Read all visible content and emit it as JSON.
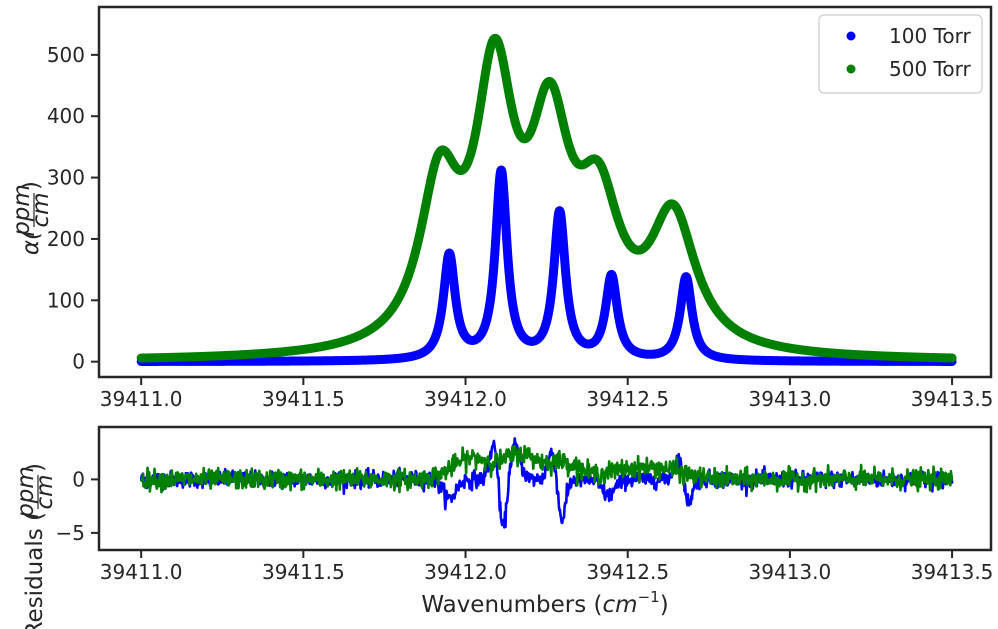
{
  "chart_data": [
    {
      "type": "scatter",
      "xlim": [
        39410.87,
        39413.62
      ],
      "ylim": [
        -25,
        578
      ],
      "x_ticks": [
        39411.0,
        39411.5,
        39412.0,
        39412.5,
        39413.0,
        39413.5
      ],
      "x_tick_labels": [
        "39411.0",
        "39411.5",
        "39412.0",
        "39412.5",
        "39413.0",
        "39413.5"
      ],
      "y_ticks": [
        0,
        100,
        200,
        300,
        400,
        500
      ],
      "y_tick_labels": [
        "0",
        "100",
        "200",
        "300",
        "400",
        "500"
      ],
      "ylabel_main": "α(",
      "ylabel_frac_num": "ppm",
      "ylabel_frac_den": "cm",
      "ylabel_close": ")",
      "grid": false,
      "legend": "top-right",
      "x_range": [
        39411.0,
        39413.5
      ],
      "series": [
        {
          "name": "100 Torr",
          "color": "#0000ff",
          "model": "lorentzian_sum",
          "baseline": 0,
          "peaks": [
            {
              "center": 39411.95,
              "height": 170,
              "hwhm": 0.022
            },
            {
              "center": 39412.11,
              "height": 305,
              "hwhm": 0.022
            },
            {
              "center": 39412.29,
              "height": 238,
              "hwhm": 0.022
            },
            {
              "center": 39412.45,
              "height": 135,
              "hwhm": 0.022
            },
            {
              "center": 39412.68,
              "height": 136,
              "hwhm": 0.022
            }
          ]
        },
        {
          "name": "500 Torr",
          "color": "#008000",
          "model": "lorentzian_sum",
          "baseline": 0,
          "peaks": [
            {
              "center": 39411.92,
              "height": 255,
              "hwhm": 0.075
            },
            {
              "center": 39412.09,
              "height": 415,
              "hwhm": 0.072
            },
            {
              "center": 39412.26,
              "height": 325,
              "hwhm": 0.075
            },
            {
              "center": 39412.41,
              "height": 210,
              "hwhm": 0.08
            },
            {
              "center": 39412.64,
              "height": 212,
              "hwhm": 0.085
            }
          ]
        }
      ]
    },
    {
      "type": "line",
      "xlim": [
        39410.87,
        39413.62
      ],
      "ylim": [
        -6.6,
        4.9
      ],
      "x_ticks": [
        39411.0,
        39411.5,
        39412.0,
        39412.5,
        39413.0,
        39413.5
      ],
      "x_tick_labels": [
        "39411.0",
        "39411.5",
        "39412.0",
        "39412.5",
        "39413.0",
        "39413.5"
      ],
      "y_ticks": [
        -5,
        0
      ],
      "y_tick_labels": [
        "−5",
        "0"
      ],
      "xlabel_main": "Wavenumbers (",
      "xlabel_italic": "cm",
      "xlabel_sup": "−1",
      "xlabel_close": ")",
      "ylabel_main": "Residuals (",
      "ylabel_frac_num": "ppm",
      "ylabel_frac_den": "cm",
      "ylabel_close": ")",
      "grid": false,
      "x_range": [
        39411.0,
        39413.5
      ],
      "series": [
        {
          "name": "100 Torr",
          "color": "#0000ff",
          "noise_amplitude": 0.55,
          "features": [
            {
              "center": 39411.95,
              "amp": -1.8,
              "width": 0.02
            },
            {
              "center": 39412.09,
              "amp": 3.8,
              "width": 0.014
            },
            {
              "center": 39412.115,
              "amp": -5.8,
              "width": 0.013
            },
            {
              "center": 39412.15,
              "amp": 3.2,
              "width": 0.018
            },
            {
              "center": 39412.27,
              "amp": 3.0,
              "width": 0.014
            },
            {
              "center": 39412.295,
              "amp": -4.2,
              "width": 0.013
            },
            {
              "center": 39412.44,
              "amp": -1.5,
              "width": 0.02
            },
            {
              "center": 39412.66,
              "amp": 2.2,
              "width": 0.015
            },
            {
              "center": 39412.685,
              "amp": -2.5,
              "width": 0.013
            }
          ]
        },
        {
          "name": "500 Torr",
          "color": "#008000",
          "noise_amplitude": 0.65,
          "features": [
            {
              "center": 39412.02,
              "amp": 2.0,
              "width": 0.06
            },
            {
              "center": 39412.17,
              "amp": 2.3,
              "width": 0.05
            },
            {
              "center": 39412.3,
              "amp": 1.6,
              "width": 0.05
            },
            {
              "center": 39412.5,
              "amp": 0.9,
              "width": 0.07
            },
            {
              "center": 39412.62,
              "amp": 0.8,
              "width": 0.06
            }
          ]
        }
      ]
    }
  ]
}
